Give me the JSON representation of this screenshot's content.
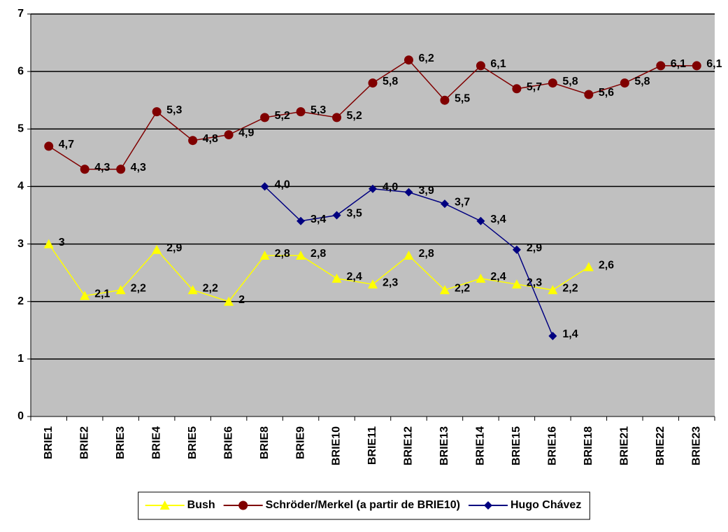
{
  "chart_data": {
    "type": "line",
    "categories": [
      "BRIE1",
      "BRIE2",
      "BRIE3",
      "BRIE4",
      "BRIE5",
      "BRIE6",
      "BRIE8",
      "BRIE9",
      "BRIE10",
      "BRIE11",
      "BRIE12",
      "BRIE13",
      "BRIE14",
      "BRIE15",
      "BRIE16",
      "BRIE18",
      "BRIE21",
      "BRIE22",
      "BRIE23"
    ],
    "series": [
      {
        "name": "Bush",
        "color": "#ffff00",
        "marker": "triangle",
        "values": [
          3,
          2.1,
          2.2,
          2.9,
          2.2,
          2,
          2.8,
          2.8,
          2.4,
          2.3,
          2.8,
          2.2,
          2.4,
          2.3,
          2.2,
          2.6,
          null,
          null,
          null
        ],
        "value_labels": [
          "3",
          "2,1",
          "2,2",
          "2,9",
          "2,2",
          "2",
          "2,8",
          "2,8",
          "2,4",
          "2,3",
          "2,8",
          "2,2",
          "2,4",
          "2,3",
          "2,2",
          "2,6",
          null,
          null,
          null
        ]
      },
      {
        "name": "Schröder/Merkel (a partir de BRIE10)",
        "color": "#800000",
        "marker": "circle",
        "values": [
          4.7,
          4.3,
          4.3,
          5.3,
          4.8,
          4.9,
          5.2,
          5.3,
          5.2,
          5.8,
          6.2,
          5.5,
          6.1,
          5.7,
          5.8,
          5.6,
          5.8,
          6.1,
          6.1
        ],
        "value_labels": [
          "4,7",
          "4,3",
          "4,3",
          "5,3",
          "4,8",
          "4,9",
          "5,2",
          "5,3",
          "5,2",
          "5,8",
          "6,2",
          "5,5",
          "6,1",
          "5,7",
          "5,8",
          "5,6",
          "5,8",
          "6,1",
          "6,1"
        ]
      },
      {
        "name": "Hugo Chávez",
        "color": "#000080",
        "marker": "diamond",
        "values": [
          null,
          null,
          null,
          null,
          null,
          null,
          4.0,
          3.4,
          3.5,
          3.96,
          3.9,
          3.7,
          3.4,
          2.9,
          1.4,
          null,
          null,
          null,
          null
        ],
        "value_labels": [
          null,
          null,
          null,
          null,
          null,
          null,
          "4,0",
          "3,4",
          "3,5",
          "4,0",
          "3,9",
          "3,7",
          "3,4",
          "2,9",
          "1,4",
          null,
          null,
          null,
          null
        ]
      }
    ],
    "ylim": [
      0,
      7
    ],
    "yticks": [
      0,
      1,
      2,
      3,
      4,
      5,
      6,
      7
    ],
    "grid": true,
    "legend": "bottom"
  }
}
